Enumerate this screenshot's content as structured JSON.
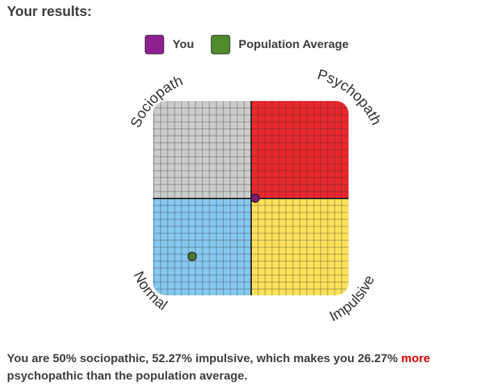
{
  "title": "Your results:",
  "legend": [
    {
      "label": "You",
      "color": "#8e1f8e"
    },
    {
      "label": "Population Average",
      "color": "#4f8a2b"
    }
  ],
  "chart_data": {
    "type": "scatter",
    "quadrant_labels": {
      "top_left": "Sociopath",
      "top_right": "Psychopath",
      "bottom_left": "Normal",
      "bottom_right": "Impulsive"
    },
    "quadrant_colors": {
      "top_left": "#cccccc",
      "top_right": "#e8282c",
      "bottom_left": "#85c8f0",
      "bottom_right": "#fde15a"
    },
    "xlim": [
      0,
      100
    ],
    "ylim": [
      0,
      100
    ],
    "grid": true,
    "series": [
      {
        "name": "You",
        "color": "#7c1d6f",
        "points": [
          {
            "x": 52.27,
            "y": 50
          }
        ]
      },
      {
        "name": "Population Average",
        "color": "#4a7a2a",
        "points": [
          {
            "x": 20,
            "y": 20
          }
        ]
      }
    ]
  },
  "result": {
    "text_before": "You are 50% sociopathic, 52.27% impulsive, which makes you 26.27%",
    "highlight": "more",
    "text_after": "psychopathic than the population average."
  }
}
